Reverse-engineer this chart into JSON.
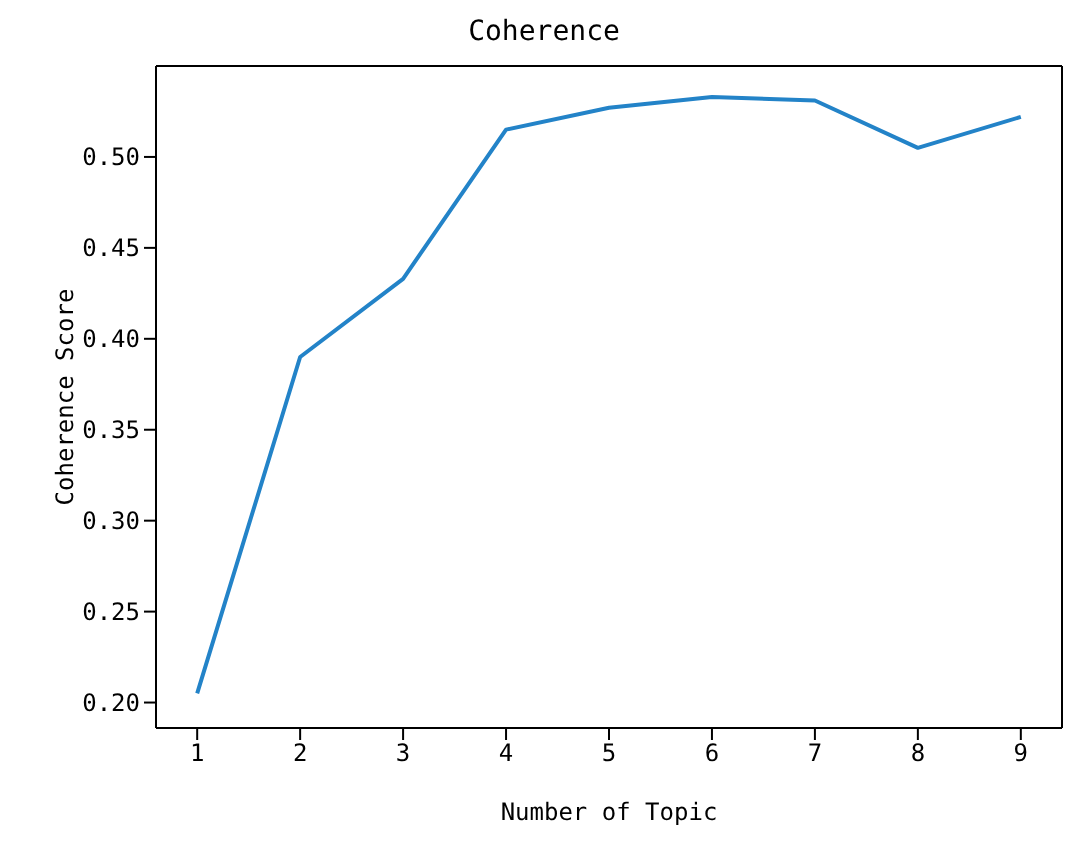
{
  "chart_data": {
    "type": "line",
    "title": "Coherence",
    "xlabel": "Number of Topic",
    "ylabel": "Coherence Score",
    "x": [
      1,
      2,
      3,
      4,
      5,
      6,
      7,
      8,
      9
    ],
    "series": [
      {
        "color": "#2383c8",
        "values": [
          0.205,
          0.39,
          0.433,
          0.515,
          0.527,
          0.533,
          0.531,
          0.505,
          0.522
        ]
      }
    ],
    "xlim": [
      0.6,
      9.4
    ],
    "xticks": [
      1,
      2,
      3,
      4,
      5,
      6,
      7,
      8,
      9
    ],
    "ylim": [
      0.186,
      0.55
    ],
    "yticks": [
      {
        "value": 0.2,
        "label": "0.20"
      },
      0.25,
      {
        "value": 0.3,
        "label": "0.30"
      },
      0.35,
      {
        "value": 0.4,
        "label": "0.40"
      },
      0.45,
      {
        "value": 0.5,
        "label": "0.50"
      }
    ],
    "marker": "none",
    "line_style": "solid"
  }
}
